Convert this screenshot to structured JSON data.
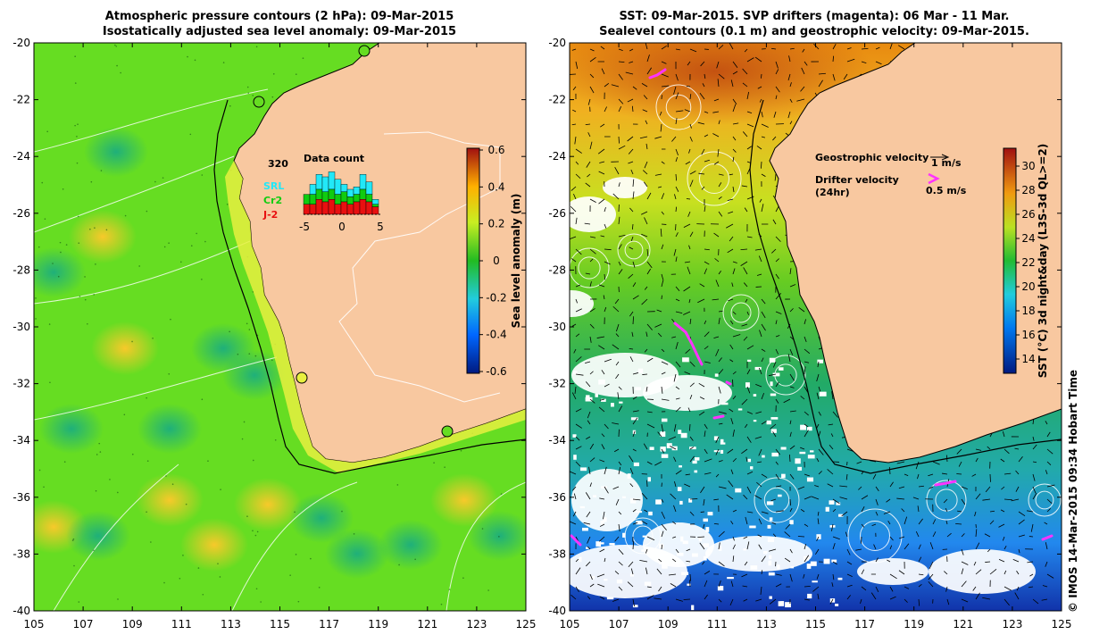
{
  "left_panel": {
    "title_line1": "Atmospheric pressure contours (2 hPa): 09-Mar-2015",
    "title_line2": "Isostatically adjusted sea level anomaly: 09-Mar-2015",
    "colorbar": {
      "label": "Sea level anomaly (m)",
      "ticks": [
        "0.6",
        "0.4",
        "0.2",
        "0",
        "-0.2",
        "-0.4",
        "-0.6"
      ]
    },
    "inset": {
      "title": "Data count",
      "max_label": "320",
      "legend": [
        {
          "label": "SRL",
          "color": "#22e8f8"
        },
        {
          "label": "Cr2",
          "color": "#10cc10"
        },
        {
          "label": "J-2",
          "color": "#e81010"
        }
      ],
      "x_ticks": [
        "-5",
        "0",
        "5"
      ],
      "bars": [
        {
          "srl": 0.3,
          "cr2": 0.4,
          "j2": 0.2
        },
        {
          "srl": 0.6,
          "cr2": 0.4,
          "j2": 0.2
        },
        {
          "srl": 0.8,
          "cr2": 0.5,
          "j2": 0.3
        },
        {
          "srl": 0.75,
          "cr2": 0.45,
          "j2": 0.25
        },
        {
          "srl": 0.85,
          "cr2": 0.5,
          "j2": 0.3
        },
        {
          "srl": 0.7,
          "cr2": 0.4,
          "j2": 0.2
        },
        {
          "srl": 0.6,
          "cr2": 0.45,
          "j2": 0.25
        },
        {
          "srl": 0.5,
          "cr2": 0.35,
          "j2": 0.2
        },
        {
          "srl": 0.55,
          "cr2": 0.4,
          "j2": 0.25
        },
        {
          "srl": 0.8,
          "cr2": 0.5,
          "j2": 0.3
        },
        {
          "srl": 0.65,
          "cr2": 0.4,
          "j2": 0.25
        },
        {
          "srl": 0.3,
          "cr2": 0.2,
          "j2": 0.15
        }
      ]
    }
  },
  "right_panel": {
    "title_line1": "SST: 09-Mar-2015. SVP drifters (magenta): 06 Mar - 11 Mar.",
    "title_line2": "Sealevel contours (0.1 m) and geostrophic velocity: 09-Mar-2015.",
    "colorbar": {
      "label": "SST (°C) 3d night&day (L3S-3d QL>=2)",
      "ticks": [
        "30",
        "28",
        "26",
        "24",
        "22",
        "20",
        "18",
        "16",
        "14"
      ]
    },
    "geostrophic_label": "Geostrophic velocity",
    "geostrophic_speed": "1 m/s",
    "drifter_label": "Drifter velocity",
    "drifter_period": "(24hr)",
    "drifter_speed": "0.5 m/s"
  },
  "axes": {
    "x_ticks": [
      "105",
      "107",
      "109",
      "111",
      "113",
      "115",
      "117",
      "119",
      "121",
      "123",
      "125"
    ],
    "y_ticks": [
      "-20",
      "-22",
      "-24",
      "-26",
      "-28",
      "-30",
      "-32",
      "-34",
      "-36",
      "-38",
      "-40"
    ],
    "lon_range": [
      105,
      125
    ],
    "lat_range": [
      -40,
      -20
    ]
  },
  "credit": "© IMOS 14-Mar-2015 09:34 Hobart Time",
  "colors": {
    "land": "#f8c8a0",
    "sla_base": "#66dd22",
    "sla_high": "#f0e030",
    "sla_low": "#22bb66",
    "drifter": "#ff33ff",
    "cloud": "#ffffff"
  }
}
